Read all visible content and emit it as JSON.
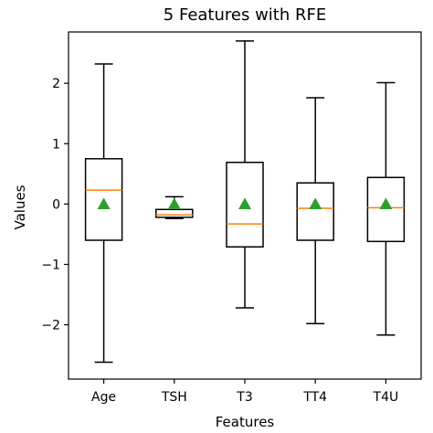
{
  "chart_data": {
    "type": "box",
    "title": "5 Features with RFE",
    "xlabel": "Features",
    "ylabel": "Values",
    "categories": [
      "Age",
      "TSH",
      "T3",
      "TT4",
      "T4U"
    ],
    "ylim": [
      -2.9,
      2.85
    ],
    "yticks": [
      -2,
      -1,
      0,
      1,
      2
    ],
    "ytick_labels": [
      "−2",
      "−1",
      "0",
      "1",
      "2"
    ],
    "boxes": [
      {
        "category": "Age",
        "whisker_low": -2.62,
        "q1": -0.6,
        "median": 0.23,
        "q3": 0.75,
        "whisker_high": 2.32,
        "mean": 0.0
      },
      {
        "category": "TSH",
        "whisker_low": -0.24,
        "q1": -0.22,
        "median": -0.18,
        "q3": -0.09,
        "whisker_high": 0.12,
        "mean": 0.0
      },
      {
        "category": "T3",
        "whisker_low": -1.72,
        "q1": -0.71,
        "median": -0.33,
        "q3": 0.69,
        "whisker_high": 2.7,
        "mean": 0.0
      },
      {
        "category": "TT4",
        "whisker_low": -1.98,
        "q1": -0.6,
        "median": -0.07,
        "q3": 0.35,
        "whisker_high": 1.76,
        "mean": 0.0
      },
      {
        "category": "T4U",
        "whisker_low": -2.17,
        "q1": -0.62,
        "median": -0.06,
        "q3": 0.44,
        "whisker_high": 2.01,
        "mean": 0.0
      }
    ],
    "grid": false,
    "colors": {
      "box": "#000000",
      "median": "#ff7f0e",
      "mean_marker": "#2ca02c",
      "background": "#ffffff"
    }
  }
}
